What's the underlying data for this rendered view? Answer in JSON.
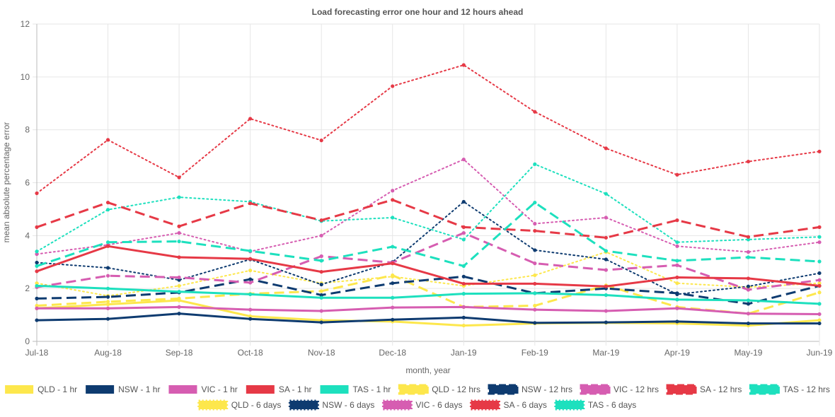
{
  "chart_data": {
    "type": "line",
    "title": "Load forecasting error one hour and 12 hours ahead",
    "xlabel": "month, year",
    "ylabel": "mean absolute percentage error",
    "ylim": [
      0,
      12
    ],
    "yticks": [
      "0",
      "2",
      "4",
      "6",
      "8",
      "10",
      "12"
    ],
    "grid": true,
    "legend_position": "bottom",
    "categories": [
      "Jul-18",
      "Aug-18",
      "Sep-18",
      "Oct-18",
      "Nov-18",
      "Dec-18",
      "Jan-19",
      "Feb-19",
      "Mar-19",
      "Apr-19",
      "May-19",
      "Jun-19"
    ],
    "series": [
      {
        "name": "QLD - 1 hr",
        "color": "#FDE74C",
        "style": "solid",
        "values": [
          1.25,
          1.4,
          1.55,
          0.95,
          0.8,
          0.75,
          0.6,
          0.68,
          0.7,
          0.68,
          0.6,
          0.8
        ]
      },
      {
        "name": "NSW - 1 hr",
        "color": "#0E3B70",
        "style": "solid",
        "values": [
          0.8,
          0.85,
          1.05,
          0.85,
          0.72,
          0.82,
          0.9,
          0.7,
          0.72,
          0.75,
          0.68,
          0.68
        ]
      },
      {
        "name": "VIC - 1 hr",
        "color": "#D65DB1",
        "style": "solid",
        "values": [
          1.25,
          1.25,
          1.3,
          1.2,
          1.15,
          1.28,
          1.3,
          1.2,
          1.15,
          1.25,
          1.05,
          1.03
        ]
      },
      {
        "name": "SA - 1 hr",
        "color": "#E63946",
        "style": "solid",
        "values": [
          2.65,
          3.6,
          3.18,
          3.12,
          2.63,
          2.95,
          2.18,
          2.18,
          2.08,
          2.42,
          2.38,
          2.1
        ]
      },
      {
        "name": "TAS - 1 hr",
        "color": "#1DE0BE",
        "style": "solid",
        "values": [
          2.1,
          2.0,
          1.88,
          1.78,
          1.65,
          1.65,
          1.8,
          1.82,
          1.75,
          1.58,
          1.55,
          1.42
        ]
      },
      {
        "name": "QLD - 12 hrs",
        "color": "#FDE74C",
        "style": "dashed",
        "values": [
          1.35,
          1.5,
          1.62,
          1.8,
          1.9,
          2.5,
          1.3,
          1.35,
          2.12,
          1.3,
          1.05,
          1.85
        ]
      },
      {
        "name": "NSW - 12 hrs",
        "color": "#0E3B70",
        "style": "dashed",
        "values": [
          1.62,
          1.68,
          1.85,
          2.35,
          1.75,
          2.2,
          2.45,
          1.82,
          2.0,
          1.82,
          1.42,
          2.1
        ]
      },
      {
        "name": "VIC - 12 hrs",
        "color": "#D65DB1",
        "style": "dashed",
        "values": [
          2.05,
          2.48,
          2.42,
          2.22,
          3.22,
          2.98,
          4.1,
          2.95,
          2.7,
          2.88,
          1.95,
          2.32
        ]
      },
      {
        "name": "SA - 12 hrs",
        "color": "#E63946",
        "style": "dashed",
        "values": [
          4.32,
          5.25,
          4.35,
          5.22,
          4.58,
          5.35,
          4.32,
          4.18,
          3.92,
          4.58,
          3.95,
          4.32
        ]
      },
      {
        "name": "TAS - 12 hrs",
        "color": "#1DE0BE",
        "style": "dashed",
        "values": [
          2.85,
          3.75,
          3.78,
          3.42,
          3.05,
          3.58,
          2.85,
          5.25,
          3.42,
          3.05,
          3.18,
          3.02
        ]
      },
      {
        "name": "QLD - 6 days",
        "color": "#FDE74C",
        "style": "dotted",
        "values": [
          2.2,
          1.72,
          2.1,
          2.68,
          2.2,
          2.45,
          2.1,
          2.5,
          3.38,
          2.2,
          2.05,
          2.2
        ]
      },
      {
        "name": "NSW - 6 days",
        "color": "#0E3B70",
        "style": "dotted",
        "values": [
          2.98,
          2.78,
          2.32,
          3.1,
          2.15,
          3.0,
          5.28,
          3.45,
          3.1,
          1.78,
          2.08,
          2.58
        ]
      },
      {
        "name": "VIC - 6 days",
        "color": "#D65DB1",
        "style": "dotted",
        "values": [
          3.3,
          3.65,
          4.1,
          3.4,
          4.0,
          5.7,
          6.88,
          4.45,
          4.68,
          3.6,
          3.38,
          3.75
        ]
      },
      {
        "name": "SA - 6 days",
        "color": "#E63946",
        "style": "dotted",
        "values": [
          5.6,
          7.62,
          6.2,
          8.42,
          7.6,
          9.65,
          10.45,
          8.68,
          7.3,
          6.3,
          6.8,
          7.18
        ]
      },
      {
        "name": "TAS - 6 days",
        "color": "#1DE0BE",
        "style": "dotted",
        "values": [
          3.4,
          4.98,
          5.45,
          5.28,
          4.55,
          4.68,
          3.85,
          6.7,
          5.58,
          3.75,
          3.85,
          3.95
        ]
      }
    ]
  }
}
